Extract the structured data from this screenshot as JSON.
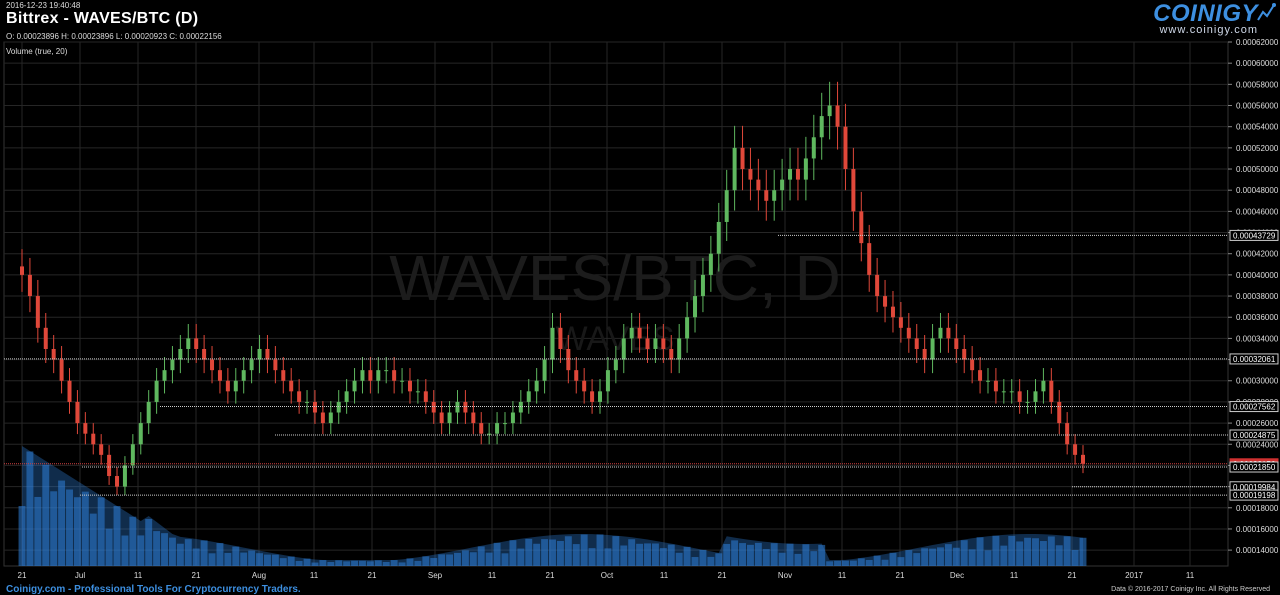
{
  "header": {
    "timestamp": "2016-12-23 19:40:48",
    "title": "Bittrex - WAVES/BTC (D)",
    "ohlc": "O: 0.00023896 H: 0.00023896 L: 0.00020923 C: 0.00022156",
    "volume_label": "Volume (true, 20)"
  },
  "logo": {
    "name": "COINIGY",
    "url": "www.coinigy.com"
  },
  "watermark": {
    "main": "WAVES/BTC, D",
    "sub": "WAVES"
  },
  "footer": {
    "left": "Coinigy.com - Professional Tools For Cryptocurrency Traders.",
    "right": "Data © 2016-2017 Coinigy Inc. All Rights Reserved"
  },
  "colors": {
    "up": "#5fb85f",
    "down": "#e0483a",
    "volume": "#2e7fd8",
    "grid": "#262626"
  },
  "chart_data": {
    "type": "candlestick",
    "y_ticks": [
      "0.00062000",
      "0.00060000",
      "0.00058000",
      "0.00056000",
      "0.00054000",
      "0.00052000",
      "0.00050000",
      "0.00048000",
      "0.00046000",
      "0.00044000",
      "0.00042000",
      "0.00040000",
      "0.00038000",
      "0.00036000",
      "0.00034000",
      "0.00032000",
      "0.00030000",
      "0.00028000",
      "0.00026000",
      "0.00024000",
      "0.00022000",
      "0.00020000",
      "0.00018000",
      "0.00016000",
      "0.00014000"
    ],
    "ylim": [
      0.000125,
      0.00062
    ],
    "x_ticks": [
      "21",
      "Jul",
      "11",
      "21",
      "Aug",
      "11",
      "21",
      "Sep",
      "11",
      "21",
      "Oct",
      "11",
      "21",
      "Nov",
      "11",
      "21",
      "Dec",
      "11",
      "21",
      "2017",
      "11"
    ],
    "levels": [
      {
        "label": "0.00043729",
        "value": 0.00043729,
        "type": "line"
      },
      {
        "label": "0.00032061",
        "value": 0.00032061,
        "type": "line"
      },
      {
        "label": "0.00027562",
        "value": 0.00027562,
        "type": "line"
      },
      {
        "label": "0.00024875",
        "value": 0.00024875,
        "type": "line"
      },
      {
        "label": "0.00022156",
        "value": 0.00022156,
        "type": "current"
      },
      {
        "label": "0.00021850",
        "value": 0.0002185,
        "type": "line"
      },
      {
        "label": "0.00019984",
        "value": 0.00019984,
        "type": "line"
      },
      {
        "label": "0.00019198",
        "value": 0.00019198,
        "type": "line"
      }
    ],
    "closes": [
      0.0004,
      0.00038,
      0.00035,
      0.00033,
      0.00032,
      0.0003,
      0.00028,
      0.00026,
      0.00025,
      0.00024,
      0.00023,
      0.00021,
      0.0002,
      0.00022,
      0.00024,
      0.00026,
      0.00028,
      0.0003,
      0.00031,
      0.00032,
      0.00033,
      0.00034,
      0.00033,
      0.00032,
      0.00031,
      0.0003,
      0.00029,
      0.0003,
      0.00031,
      0.00032,
      0.00033,
      0.00032,
      0.00031,
      0.0003,
      0.00029,
      0.00028,
      0.00028,
      0.00027,
      0.00026,
      0.00027,
      0.00028,
      0.00029,
      0.0003,
      0.00031,
      0.0003,
      0.00031,
      0.00031,
      0.0003,
      0.0003,
      0.00029,
      0.00029,
      0.00028,
      0.00027,
      0.00026,
      0.00027,
      0.00028,
      0.00027,
      0.00026,
      0.00025,
      0.00025,
      0.00026,
      0.00026,
      0.00027,
      0.00028,
      0.00029,
      0.0003,
      0.00032,
      0.00035,
      0.00033,
      0.00031,
      0.0003,
      0.00029,
      0.00028,
      0.00029,
      0.00031,
      0.00032,
      0.00034,
      0.00035,
      0.00034,
      0.00033,
      0.00034,
      0.00033,
      0.00032,
      0.00034,
      0.00036,
      0.00038,
      0.0004,
      0.00042,
      0.00045,
      0.00048,
      0.00052,
      0.0005,
      0.00049,
      0.00048,
      0.00047,
      0.00048,
      0.00049,
      0.0005,
      0.00049,
      0.00051,
      0.00053,
      0.00055,
      0.00056,
      0.00054,
      0.0005,
      0.00046,
      0.00043,
      0.0004,
      0.00038,
      0.00037,
      0.00036,
      0.00035,
      0.00034,
      0.00033,
      0.00032,
      0.00034,
      0.00035,
      0.00034,
      0.00033,
      0.00032,
      0.00031,
      0.0003,
      0.0003,
      0.00029,
      0.00029,
      0.00029,
      0.00028,
      0.00028,
      0.00029,
      0.0003,
      0.00028,
      0.00026,
      0.00024,
      0.00023,
      0.00022156
    ],
    "volume_max_ratio": 0.0
  }
}
